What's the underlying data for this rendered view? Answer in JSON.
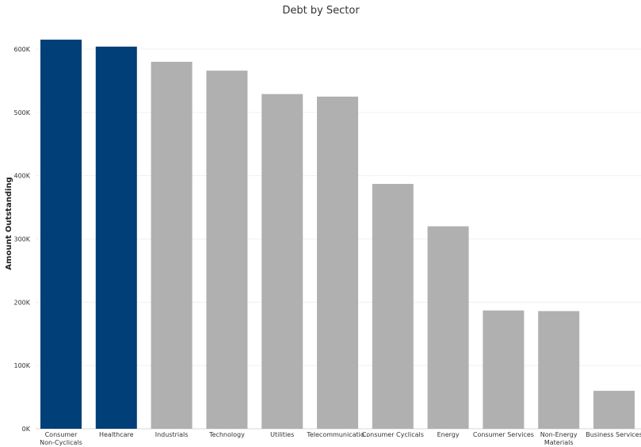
{
  "chart_data": {
    "type": "bar",
    "title": "Debt by Sector",
    "xlabel": "",
    "ylabel": "Amount Outstanding",
    "ylim": [
      0,
      640000
    ],
    "yticks": [
      0,
      100000,
      200000,
      300000,
      400000,
      500000,
      600000
    ],
    "ytick_labels": [
      "0K",
      "100K",
      "200K",
      "300K",
      "400K",
      "500K",
      "600K"
    ],
    "categories": [
      [
        "Consumer",
        "Non-Cyclicals"
      ],
      [
        "Healthcare"
      ],
      [
        "Industrials"
      ],
      [
        "Technology"
      ],
      [
        "Utilities"
      ],
      [
        "Telecommunicatio.."
      ],
      [
        "Consumer Cyclicals"
      ],
      [
        "Energy"
      ],
      [
        "Consumer Services"
      ],
      [
        "Non-Energy",
        "Materials"
      ],
      [
        "Business Services"
      ]
    ],
    "values": [
      615000,
      604000,
      580000,
      566000,
      529000,
      525000,
      387000,
      320000,
      187000,
      186000,
      60000
    ],
    "highlighted": [
      true,
      true,
      false,
      false,
      false,
      false,
      false,
      false,
      false,
      false,
      false
    ],
    "colors": {
      "highlight": "#003f77",
      "default": "#b0b0b0"
    },
    "grid": true,
    "legend": "none"
  }
}
